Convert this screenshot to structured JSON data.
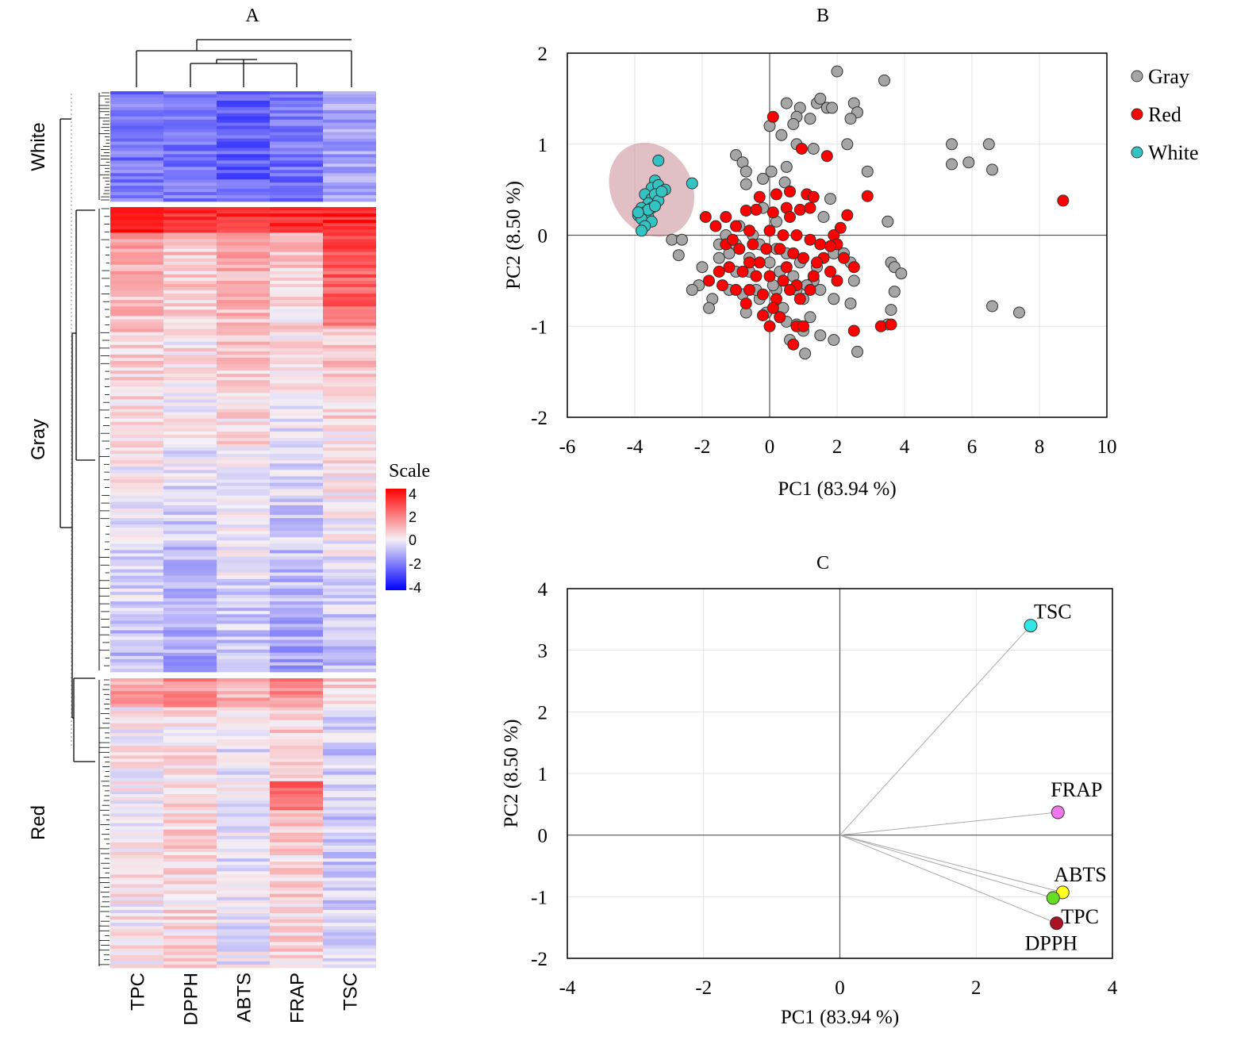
{
  "panels": {
    "a": {
      "label": "A"
    },
    "b": {
      "label": "B"
    },
    "c": {
      "label": "C"
    }
  },
  "chart_data": [
    {
      "type": "heatmap",
      "panel": "A",
      "columns": [
        "TPC",
        "DPPH",
        "ABTS",
        "FRAP",
        "TSC"
      ],
      "row_groups": [
        {
          "name": "White",
          "rows": 35
        },
        {
          "name": "Gray",
          "rows": 145
        },
        {
          "name": "Red",
          "rows": 90
        }
      ],
      "legend": {
        "title": "Scale",
        "ticks": [
          4,
          2,
          0,
          -2,
          -4
        ]
      },
      "colors": {
        "low": "#0000ff",
        "mid": "#f5f0f5",
        "high": "#ff0000"
      },
      "group_profiles": {
        "White": [
          -2.0,
          -2.1,
          -2.4,
          -2.1,
          -1.3
        ],
        "Gray": [
          0.2,
          -0.2,
          0.3,
          -0.2,
          0.3
        ],
        "Red": [
          0.1,
          0.4,
          -0.2,
          0.5,
          -0.6
        ]
      },
      "dendrogram": "present"
    },
    {
      "type": "scatter",
      "panel": "B",
      "xlabel": "PC1 (83.94 %)",
      "ylabel": "PC2 (8.50 %)",
      "xlim": [
        -6,
        10
      ],
      "ylim": [
        -2,
        2
      ],
      "xticks": [
        -6,
        -4,
        -2,
        0,
        2,
        4,
        6,
        8,
        10
      ],
      "yticks": [
        2,
        1,
        0,
        -1,
        -2
      ],
      "legend_position": "right",
      "ellipse": {
        "series": "White",
        "cx": -3.5,
        "cy": 0.5,
        "rx": 2.6,
        "ry": 0.55,
        "angle_deg": 30
      },
      "series": [
        {
          "name": "Gray",
          "color": "#a6a6a6",
          "points": [
            [
              2.0,
              1.8
            ],
            [
              3.4,
              1.7
            ],
            [
              0.5,
              1.45
            ],
            [
              0.9,
              1.4
            ],
            [
              1.4,
              1.45
            ],
            [
              1.7,
              1.4
            ],
            [
              2.5,
              1.45
            ],
            [
              2.6,
              1.35
            ],
            [
              1.85,
              1.4
            ],
            [
              1.5,
              1.5
            ],
            [
              2.4,
              1.28
            ],
            [
              0.8,
              1.3
            ],
            [
              1.2,
              1.28
            ],
            [
              0.7,
              1.22
            ],
            [
              0.0,
              1.2
            ],
            [
              0.35,
              1.1
            ],
            [
              0.8,
              1.0
            ],
            [
              1.3,
              0.95
            ],
            [
              2.3,
              1.0
            ],
            [
              5.4,
              1.0
            ],
            [
              6.5,
              1.0
            ],
            [
              5.9,
              0.8
            ],
            [
              5.4,
              0.78
            ],
            [
              6.6,
              0.72
            ],
            [
              -1.0,
              0.88
            ],
            [
              -0.8,
              0.8
            ],
            [
              -0.7,
              0.7
            ],
            [
              0.05,
              0.7
            ],
            [
              0.5,
              0.75
            ],
            [
              -0.2,
              0.62
            ],
            [
              2.9,
              0.7
            ],
            [
              3.5,
              0.15
            ],
            [
              -0.7,
              0.56
            ],
            [
              0.45,
              0.58
            ],
            [
              1.8,
              0.4
            ],
            [
              -2.9,
              -0.05
            ],
            [
              -2.6,
              -0.05
            ],
            [
              -2.7,
              -0.22
            ],
            [
              -2.0,
              -0.35
            ],
            [
              -2.1,
              -0.55
            ],
            [
              -2.3,
              -0.6
            ],
            [
              -1.7,
              -0.7
            ],
            [
              -1.8,
              -0.8
            ],
            [
              -1.2,
              -0.2
            ],
            [
              -1.0,
              -0.4
            ],
            [
              -0.6,
              -0.4
            ],
            [
              -0.8,
              -0.65
            ],
            [
              -0.7,
              -0.85
            ],
            [
              -0.3,
              -0.7
            ],
            [
              -0.1,
              -0.85
            ],
            [
              0.3,
              -0.9
            ],
            [
              0.5,
              -0.95
            ],
            [
              0.8,
              -0.98
            ],
            [
              1.0,
              -1.05
            ],
            [
              1.05,
              -1.3
            ],
            [
              0.6,
              -1.15
            ],
            [
              1.5,
              -1.1
            ],
            [
              1.9,
              -1.15
            ],
            [
              2.6,
              -1.28
            ],
            [
              1.2,
              -0.9
            ],
            [
              0.4,
              -0.8
            ],
            [
              0.2,
              -0.6
            ],
            [
              1.3,
              -0.5
            ],
            [
              1.5,
              -0.6
            ],
            [
              1.9,
              -0.7
            ],
            [
              2.4,
              -0.75
            ],
            [
              2.5,
              -0.5
            ],
            [
              2.4,
              -0.3
            ],
            [
              1.9,
              -0.2
            ],
            [
              1.4,
              -0.35
            ],
            [
              0.9,
              -0.3
            ],
            [
              0.5,
              -0.2
            ],
            [
              0.2,
              -0.15
            ],
            [
              -0.3,
              -0.1
            ],
            [
              -0.5,
              0.0
            ],
            [
              -0.9,
              0.1
            ],
            [
              -1.3,
              0.0
            ],
            [
              -1.5,
              -0.1
            ],
            [
              -1.0,
              -0.1
            ],
            [
              0.0,
              -0.3
            ],
            [
              0.3,
              -0.4
            ],
            [
              0.7,
              -0.45
            ],
            [
              1.1,
              -0.55
            ],
            [
              3.6,
              -0.3
            ],
            [
              3.7,
              -0.35
            ],
            [
              3.9,
              -0.42
            ],
            [
              3.7,
              -0.62
            ],
            [
              3.6,
              -0.82
            ],
            [
              3.5,
              -0.98
            ],
            [
              6.6,
              -0.78
            ],
            [
              7.4,
              -0.85
            ],
            [
              1.0,
              -0.7
            ],
            [
              0.8,
              -0.6
            ],
            [
              0.1,
              -0.55
            ],
            [
              -0.4,
              -0.6
            ],
            [
              -1.5,
              -0.25
            ],
            [
              -0.2,
              0.3
            ],
            [
              0.2,
              0.15
            ],
            [
              1.6,
              0.2
            ],
            [
              2.2,
              -0.2
            ],
            [
              -1.2,
              -0.6
            ],
            [
              -0.6,
              -0.25
            ]
          ]
        },
        {
          "name": "Red",
          "color": "#ff0000",
          "points": [
            [
              0.1,
              1.3
            ],
            [
              0.95,
              0.95
            ],
            [
              1.7,
              0.87
            ],
            [
              8.7,
              0.38
            ],
            [
              -0.3,
              0.42
            ],
            [
              0.6,
              0.48
            ],
            [
              1.1,
              0.45
            ],
            [
              2.9,
              0.43
            ],
            [
              1.3,
              0.42
            ],
            [
              -1.9,
              0.2
            ],
            [
              -1.3,
              0.2
            ],
            [
              -0.7,
              0.27
            ],
            [
              -0.4,
              0.28
            ],
            [
              0.1,
              0.25
            ],
            [
              0.5,
              0.3
            ],
            [
              0.9,
              0.28
            ],
            [
              1.2,
              0.3
            ],
            [
              2.3,
              0.22
            ],
            [
              2.1,
              0.08
            ],
            [
              1.9,
              0.0
            ],
            [
              -1.6,
              0.1
            ],
            [
              -1.0,
              0.1
            ],
            [
              -0.6,
              0.05
            ],
            [
              0.0,
              0.05
            ],
            [
              0.4,
              0.0
            ],
            [
              0.8,
              0.0
            ],
            [
              1.2,
              -0.05
            ],
            [
              1.5,
              -0.1
            ],
            [
              2.0,
              -0.1
            ],
            [
              2.2,
              -0.25
            ],
            [
              2.5,
              -0.35
            ],
            [
              -1.3,
              -0.1
            ],
            [
              -0.9,
              -0.15
            ],
            [
              -0.5,
              -0.1
            ],
            [
              -0.1,
              -0.15
            ],
            [
              0.3,
              -0.15
            ],
            [
              0.7,
              -0.2
            ],
            [
              1.0,
              -0.25
            ],
            [
              1.6,
              -0.25
            ],
            [
              1.8,
              -0.4
            ],
            [
              2.0,
              -0.5
            ],
            [
              1.3,
              -0.45
            ],
            [
              -1.5,
              -0.4
            ],
            [
              -1.2,
              -0.35
            ],
            [
              -0.8,
              -0.4
            ],
            [
              -0.4,
              -0.45
            ],
            [
              0.0,
              -0.45
            ],
            [
              0.4,
              -0.5
            ],
            [
              0.8,
              -0.55
            ],
            [
              1.2,
              -0.6
            ],
            [
              -1.8,
              -0.5
            ],
            [
              -1.4,
              -0.55
            ],
            [
              -1.0,
              -0.6
            ],
            [
              -0.6,
              -0.6
            ],
            [
              -0.2,
              -0.65
            ],
            [
              0.2,
              -0.7
            ],
            [
              0.6,
              -0.6
            ],
            [
              -0.7,
              -0.75
            ],
            [
              0.1,
              -0.8
            ],
            [
              0.3,
              -0.9
            ],
            [
              0.8,
              -1.0
            ],
            [
              1.0,
              -1.0
            ],
            [
              2.5,
              -1.05
            ],
            [
              3.3,
              -1.0
            ],
            [
              3.6,
              -0.98
            ],
            [
              0.7,
              -1.2
            ],
            [
              0.0,
              -1.0
            ],
            [
              -0.2,
              -0.88
            ],
            [
              1.4,
              -0.3
            ],
            [
              0.5,
              -0.35
            ],
            [
              -0.3,
              -0.3
            ],
            [
              -0.6,
              -0.3
            ],
            [
              1.8,
              -0.12
            ],
            [
              0.2,
              0.45
            ],
            [
              0.6,
              0.2
            ],
            [
              -1.1,
              -0.05
            ],
            [
              0.9,
              -0.7
            ]
          ]
        },
        {
          "name": "White",
          "color": "#33c3c3",
          "points": [
            [
              -3.3,
              0.82
            ],
            [
              -2.3,
              0.57
            ],
            [
              -3.4,
              0.6
            ],
            [
              -3.5,
              0.52
            ],
            [
              -3.3,
              0.55
            ],
            [
              -3.1,
              0.5
            ],
            [
              -3.7,
              0.45
            ],
            [
              -3.5,
              0.4
            ],
            [
              -3.4,
              0.45
            ],
            [
              -3.6,
              0.35
            ],
            [
              -3.8,
              0.3
            ],
            [
              -3.5,
              0.3
            ],
            [
              -3.3,
              0.38
            ],
            [
              -3.7,
              0.25
            ],
            [
              -3.9,
              0.22
            ],
            [
              -3.6,
              0.2
            ],
            [
              -3.8,
              0.18
            ],
            [
              -3.5,
              0.15
            ],
            [
              -3.7,
              0.1
            ],
            [
              -3.8,
              0.05
            ],
            [
              -3.6,
              0.28
            ],
            [
              -3.4,
              0.32
            ],
            [
              -3.2,
              0.48
            ],
            [
              -3.9,
              0.25
            ]
          ]
        }
      ]
    },
    {
      "type": "scatter",
      "panel": "C",
      "xlabel": "PC1 (83.94 %)",
      "ylabel": "PC2 (8.50 %)",
      "xlim": [
        -4,
        4
      ],
      "ylim": [
        -2,
        4
      ],
      "xticks": [
        -4,
        -2,
        0,
        2,
        4
      ],
      "yticks": [
        4,
        3,
        2,
        1,
        0,
        -1,
        -2
      ],
      "loadings": [
        {
          "name": "TSC",
          "x": 2.8,
          "y": 3.4,
          "color": "#33e6e6"
        },
        {
          "name": "FRAP",
          "x": 3.2,
          "y": 0.37,
          "color": "#ee77ee"
        },
        {
          "name": "ABTS",
          "x": 3.27,
          "y": -0.93,
          "color": "#ffff22"
        },
        {
          "name": "TPC",
          "x": 3.13,
          "y": -1.02,
          "color": "#66dd22"
        },
        {
          "name": "DPPH",
          "x": 3.18,
          "y": -1.43,
          "color": "#aa1122"
        }
      ]
    }
  ]
}
